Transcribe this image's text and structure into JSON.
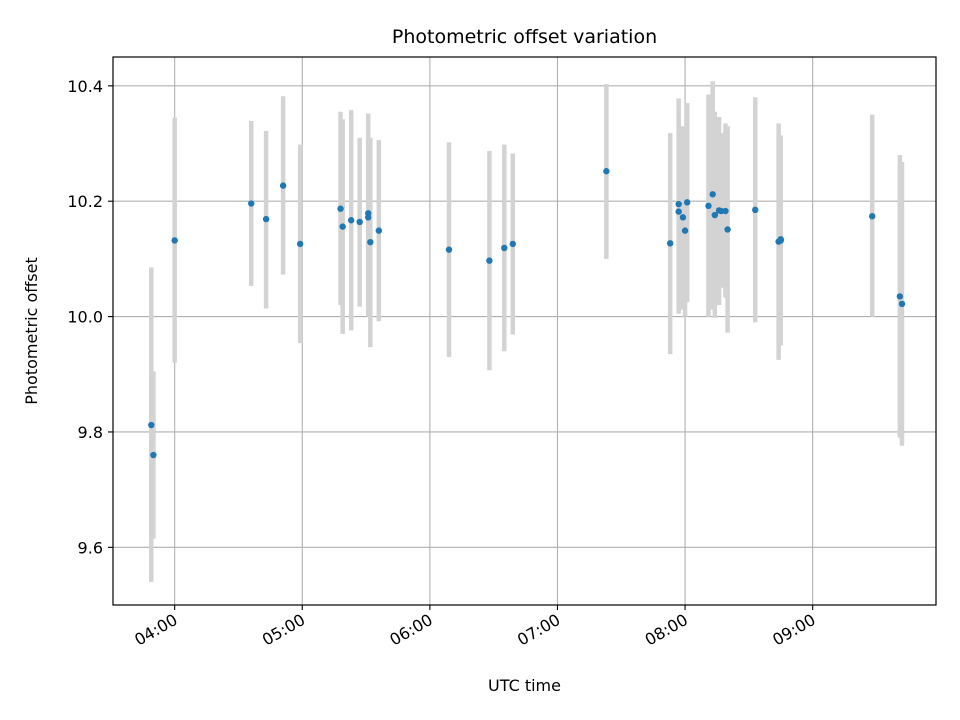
{
  "chart_data": {
    "type": "scatter",
    "title": "Photometric offset variation",
    "xlabel": "UTC time",
    "ylabel": "Photometric offset",
    "x_ticks": [
      "04:00",
      "05:00",
      "06:00",
      "07:00",
      "08:00",
      "09:00"
    ],
    "y_ticks": [
      "9.6",
      "9.8",
      "10.0",
      "10.2",
      "10.4"
    ],
    "xlim": [
      "03:31",
      "09:58"
    ],
    "ylim": [
      9.5,
      10.45
    ],
    "grid": true,
    "colors": {
      "point": "#1f77b4",
      "errorbar": "#d3d3d3",
      "grid": "#b0b0b0"
    },
    "points": [
      {
        "x": "03:49",
        "y": 9.812,
        "yerr_low": 9.54,
        "yerr_high": 10.085
      },
      {
        "x": "03:50",
        "y": 9.76,
        "yerr_low": 9.615,
        "yerr_high": 9.905
      },
      {
        "x": "04:00",
        "y": 10.132,
        "yerr_low": 9.92,
        "yerr_high": 10.345
      },
      {
        "x": "04:36",
        "y": 10.196,
        "yerr_low": 10.053,
        "yerr_high": 10.339
      },
      {
        "x": "04:43",
        "y": 10.169,
        "yerr_low": 10.014,
        "yerr_high": 10.322
      },
      {
        "x": "04:51",
        "y": 10.227,
        "yerr_low": 10.073,
        "yerr_high": 10.382
      },
      {
        "x": "04:59",
        "y": 10.126,
        "yerr_low": 9.954,
        "yerr_high": 10.298
      },
      {
        "x": "05:18",
        "y": 10.187,
        "yerr_low": 10.02,
        "yerr_high": 10.355
      },
      {
        "x": "05:19",
        "y": 10.156,
        "yerr_low": 9.97,
        "yerr_high": 10.342
      },
      {
        "x": "05:23",
        "y": 10.167,
        "yerr_low": 9.976,
        "yerr_high": 10.358
      },
      {
        "x": "05:27",
        "y": 10.164,
        "yerr_low": 10.017,
        "yerr_high": 10.31
      },
      {
        "x": "05:31",
        "y": 10.179,
        "yerr_low": 10.006,
        "yerr_high": 10.352
      },
      {
        "x": "05:31",
        "y": 10.172,
        "yerr_low": 10.0,
        "yerr_high": 10.344
      },
      {
        "x": "05:32",
        "y": 10.129,
        "yerr_low": 9.947,
        "yerr_high": 10.31
      },
      {
        "x": "05:36",
        "y": 10.149,
        "yerr_low": 9.992,
        "yerr_high": 10.306
      },
      {
        "x": "06:09",
        "y": 10.116,
        "yerr_low": 9.93,
        "yerr_high": 10.302
      },
      {
        "x": "06:28",
        "y": 10.097,
        "yerr_low": 9.907,
        "yerr_high": 10.287
      },
      {
        "x": "06:35",
        "y": 10.119,
        "yerr_low": 9.94,
        "yerr_high": 10.298
      },
      {
        "x": "06:39",
        "y": 10.126,
        "yerr_low": 9.969,
        "yerr_high": 10.283
      },
      {
        "x": "07:23",
        "y": 10.252,
        "yerr_low": 10.1,
        "yerr_high": 10.403
      },
      {
        "x": "07:53",
        "y": 10.127,
        "yerr_low": 9.935,
        "yerr_high": 10.318
      },
      {
        "x": "07:57",
        "y": 10.195,
        "yerr_low": 10.01,
        "yerr_high": 10.378
      },
      {
        "x": "07:57",
        "y": 10.182,
        "yerr_low": 10.005,
        "yerr_high": 10.36
      },
      {
        "x": "07:59",
        "y": 10.172,
        "yerr_low": 10.012,
        "yerr_high": 10.33
      },
      {
        "x": "08:00",
        "y": 10.149,
        "yerr_low": 10.0,
        "yerr_high": 10.299
      },
      {
        "x": "08:01",
        "y": 10.198,
        "yerr_low": 10.025,
        "yerr_high": 10.37
      },
      {
        "x": "08:11",
        "y": 10.192,
        "yerr_low": 10.0,
        "yerr_high": 10.385
      },
      {
        "x": "08:13",
        "y": 10.212,
        "yerr_low": 10.012,
        "yerr_high": 10.408
      },
      {
        "x": "08:14",
        "y": 10.176,
        "yerr_low": 9.998,
        "yerr_high": 10.355
      },
      {
        "x": "08:16",
        "y": 10.184,
        "yerr_low": 10.02,
        "yerr_high": 10.346
      },
      {
        "x": "08:17",
        "y": 10.183,
        "yerr_low": 10.05,
        "yerr_high": 10.318
      },
      {
        "x": "08:19",
        "y": 10.183,
        "yerr_low": 10.033,
        "yerr_high": 10.335
      },
      {
        "x": "08:20",
        "y": 10.151,
        "yerr_low": 9.972,
        "yerr_high": 10.33
      },
      {
        "x": "08:33",
        "y": 10.185,
        "yerr_low": 9.99,
        "yerr_high": 10.38
      },
      {
        "x": "08:44",
        "y": 10.13,
        "yerr_low": 9.925,
        "yerr_high": 10.335
      },
      {
        "x": "08:45",
        "y": 10.132,
        "yerr_low": 9.95,
        "yerr_high": 10.314
      },
      {
        "x": "08:45",
        "y": 10.134,
        "yerr_low": 9.96,
        "yerr_high": 10.308
      },
      {
        "x": "09:28",
        "y": 10.174,
        "yerr_low": 10.0,
        "yerr_high": 10.35
      },
      {
        "x": "09:41",
        "y": 10.035,
        "yerr_low": 9.79,
        "yerr_high": 10.28
      },
      {
        "x": "09:42",
        "y": 10.022,
        "yerr_low": 9.776,
        "yerr_high": 10.268
      }
    ]
  }
}
